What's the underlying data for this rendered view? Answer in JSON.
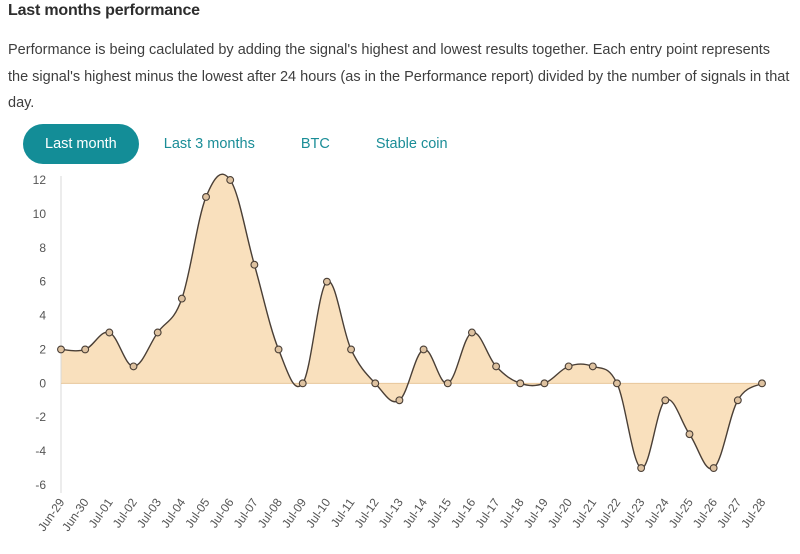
{
  "section": {
    "title": "Last months performance",
    "description": "Performance is being caclulated by adding the signal's highest and lowest results together. Each entry point represents the signal's highest minus the lowest after 24 hours (as in the Performance report) divided by the number of signals in that day."
  },
  "tabs": [
    {
      "label": "Last month",
      "active": true
    },
    {
      "label": "Last 3 months",
      "active": false
    },
    {
      "label": "BTC",
      "active": false
    },
    {
      "label": "Stable coin",
      "active": false
    }
  ],
  "colors": {
    "accent": "#138d97",
    "area_fill": "#f9e0bd",
    "line": "#4a3f36",
    "point_fill": "#dec2a0"
  },
  "chart_data": {
    "type": "area",
    "x": [
      "Jun-29",
      "Jun-30",
      "Jul-01",
      "Jul-02",
      "Jul-03",
      "Jul-04",
      "Jul-05",
      "Jul-06",
      "Jul-07",
      "Jul-08",
      "Jul-09",
      "Jul-10",
      "Jul-11",
      "Jul-12",
      "Jul-13",
      "Jul-14",
      "Jul-15",
      "Jul-16",
      "Jul-17",
      "Jul-18",
      "Jul-19",
      "Jul-20",
      "Jul-21",
      "Jul-22",
      "Jul-23",
      "Jul-24",
      "Jul-25",
      "Jul-26",
      "Jul-27",
      "Jul-28"
    ],
    "values": [
      2,
      2,
      3,
      1,
      3,
      5,
      11,
      12,
      7,
      2,
      0,
      6,
      2,
      0,
      -1,
      2,
      0,
      3,
      1,
      0,
      0,
      1,
      1,
      0,
      -5,
      -1,
      -3,
      -5,
      -1,
      0
    ],
    "yticks": [
      12,
      10,
      8,
      6,
      4,
      2,
      0,
      -2,
      -4,
      -6
    ],
    "ylim": [
      -6,
      12
    ],
    "grid": false,
    "zero_line": true
  }
}
